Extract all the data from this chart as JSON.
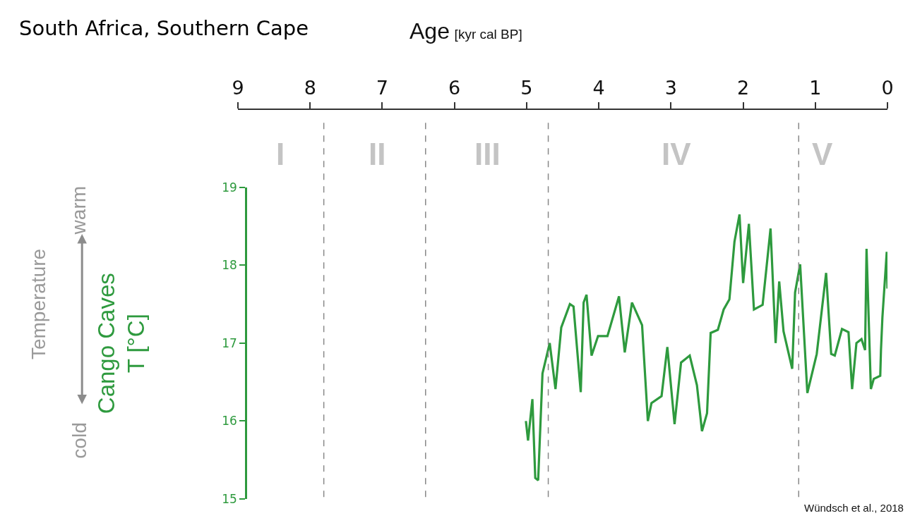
{
  "chart_data": {
    "type": "line",
    "title": "South Africa, Southern Cape",
    "xlabel": "Age [kyr cal BP]",
    "ylabel": "Cango Caves\nT [°C]",
    "annotations": [
      "Temperature",
      "cold",
      "warm",
      "Wündsch et al., 2018",
      "I",
      "II",
      "III",
      "IV",
      "V"
    ],
    "x": [
      5.01,
      4.98,
      4.92,
      4.88,
      4.84,
      4.78,
      4.68,
      4.6,
      4.52,
      4.4,
      4.35,
      4.25,
      4.21,
      4.17,
      4.1,
      4.01,
      3.88,
      3.72,
      3.64,
      3.54,
      3.4,
      3.32,
      3.27,
      3.13,
      3.05,
      2.95,
      2.86,
      2.74,
      2.64,
      2.57,
      2.5,
      2.45,
      2.35,
      2.27,
      2.19,
      2.12,
      2.05,
      2.0,
      1.92,
      1.85,
      1.73,
      1.62,
      1.55,
      1.5,
      1.44,
      1.32,
      1.28,
      1.21,
      1.11,
      0.98,
      0.85,
      0.78,
      0.73,
      0.63,
      0.54,
      0.49,
      0.43,
      0.36,
      0.31,
      0.29,
      0.23,
      0.19,
      0.1,
      0.09,
      0.07,
      0.01,
      0.0
    ],
    "series": [
      {
        "color": "#2e9a3e",
        "values": [
          16.0,
          15.75,
          16.28,
          15.27,
          15.24,
          16.61,
          17.0,
          16.41,
          17.2,
          17.5,
          17.47,
          16.37,
          17.52,
          17.62,
          16.84,
          17.09,
          17.09,
          17.6,
          16.88,
          17.52,
          17.23,
          16.0,
          16.23,
          16.32,
          16.95,
          15.96,
          16.75,
          16.84,
          16.46,
          15.87,
          16.1,
          17.13,
          17.17,
          17.43,
          17.56,
          18.3,
          18.65,
          17.77,
          18.53,
          17.43,
          17.49,
          18.47,
          17.0,
          17.79,
          17.15,
          16.67,
          17.65,
          18.01,
          16.36,
          16.86,
          17.9,
          16.86,
          16.84,
          17.18,
          17.14,
          16.41,
          17.0,
          17.05,
          16.91,
          18.21,
          16.41,
          16.54,
          16.58,
          16.91,
          17.33,
          18.17,
          17.7
        ]
      }
    ],
    "xlim": [
      9,
      0
    ],
    "xticks": [
      9,
      8,
      7,
      6,
      5,
      4,
      3,
      2,
      1,
      0
    ],
    "ylim": [
      15,
      19
    ],
    "yticks": [
      15,
      16,
      17,
      18,
      19
    ],
    "ref_lines": [
      {
        "axis": "x",
        "value": 7.81,
        "color": "#888888",
        "line_style": "dashed"
      },
      {
        "axis": "x",
        "value": 6.4,
        "color": "#888888",
        "line_style": "dashed"
      },
      {
        "axis": "x",
        "value": 4.7,
        "color": "#888888",
        "line_style": "dashed"
      },
      {
        "axis": "x",
        "value": 1.23,
        "color": "#888888",
        "line_style": "dashed"
      }
    ],
    "marker": "none",
    "line_style": "solid"
  }
}
